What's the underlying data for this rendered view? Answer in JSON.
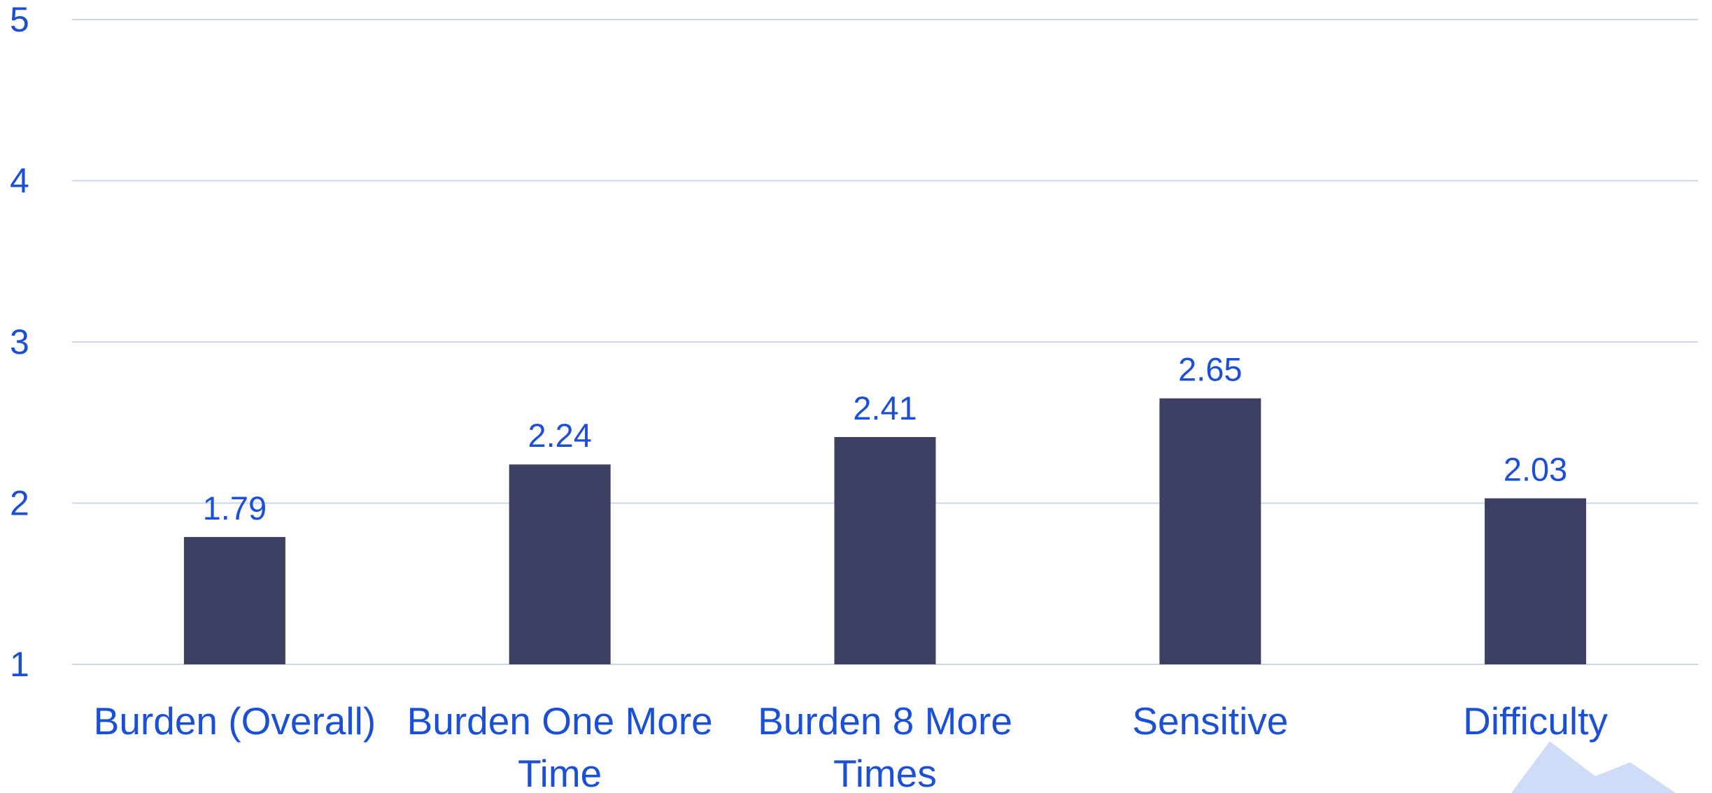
{
  "chart_data": {
    "type": "bar",
    "categories": [
      "Burden (Overall)",
      "Burden One More Time",
      "Burden 8 More Times",
      "Sensitive",
      "Difficulty"
    ],
    "values": [
      1.79,
      2.24,
      2.41,
      2.65,
      2.03
    ],
    "color": "#3d3f63",
    "ylim": [
      1,
      5
    ],
    "yticks": [
      1,
      2,
      3,
      4,
      5
    ],
    "grid": true
  }
}
